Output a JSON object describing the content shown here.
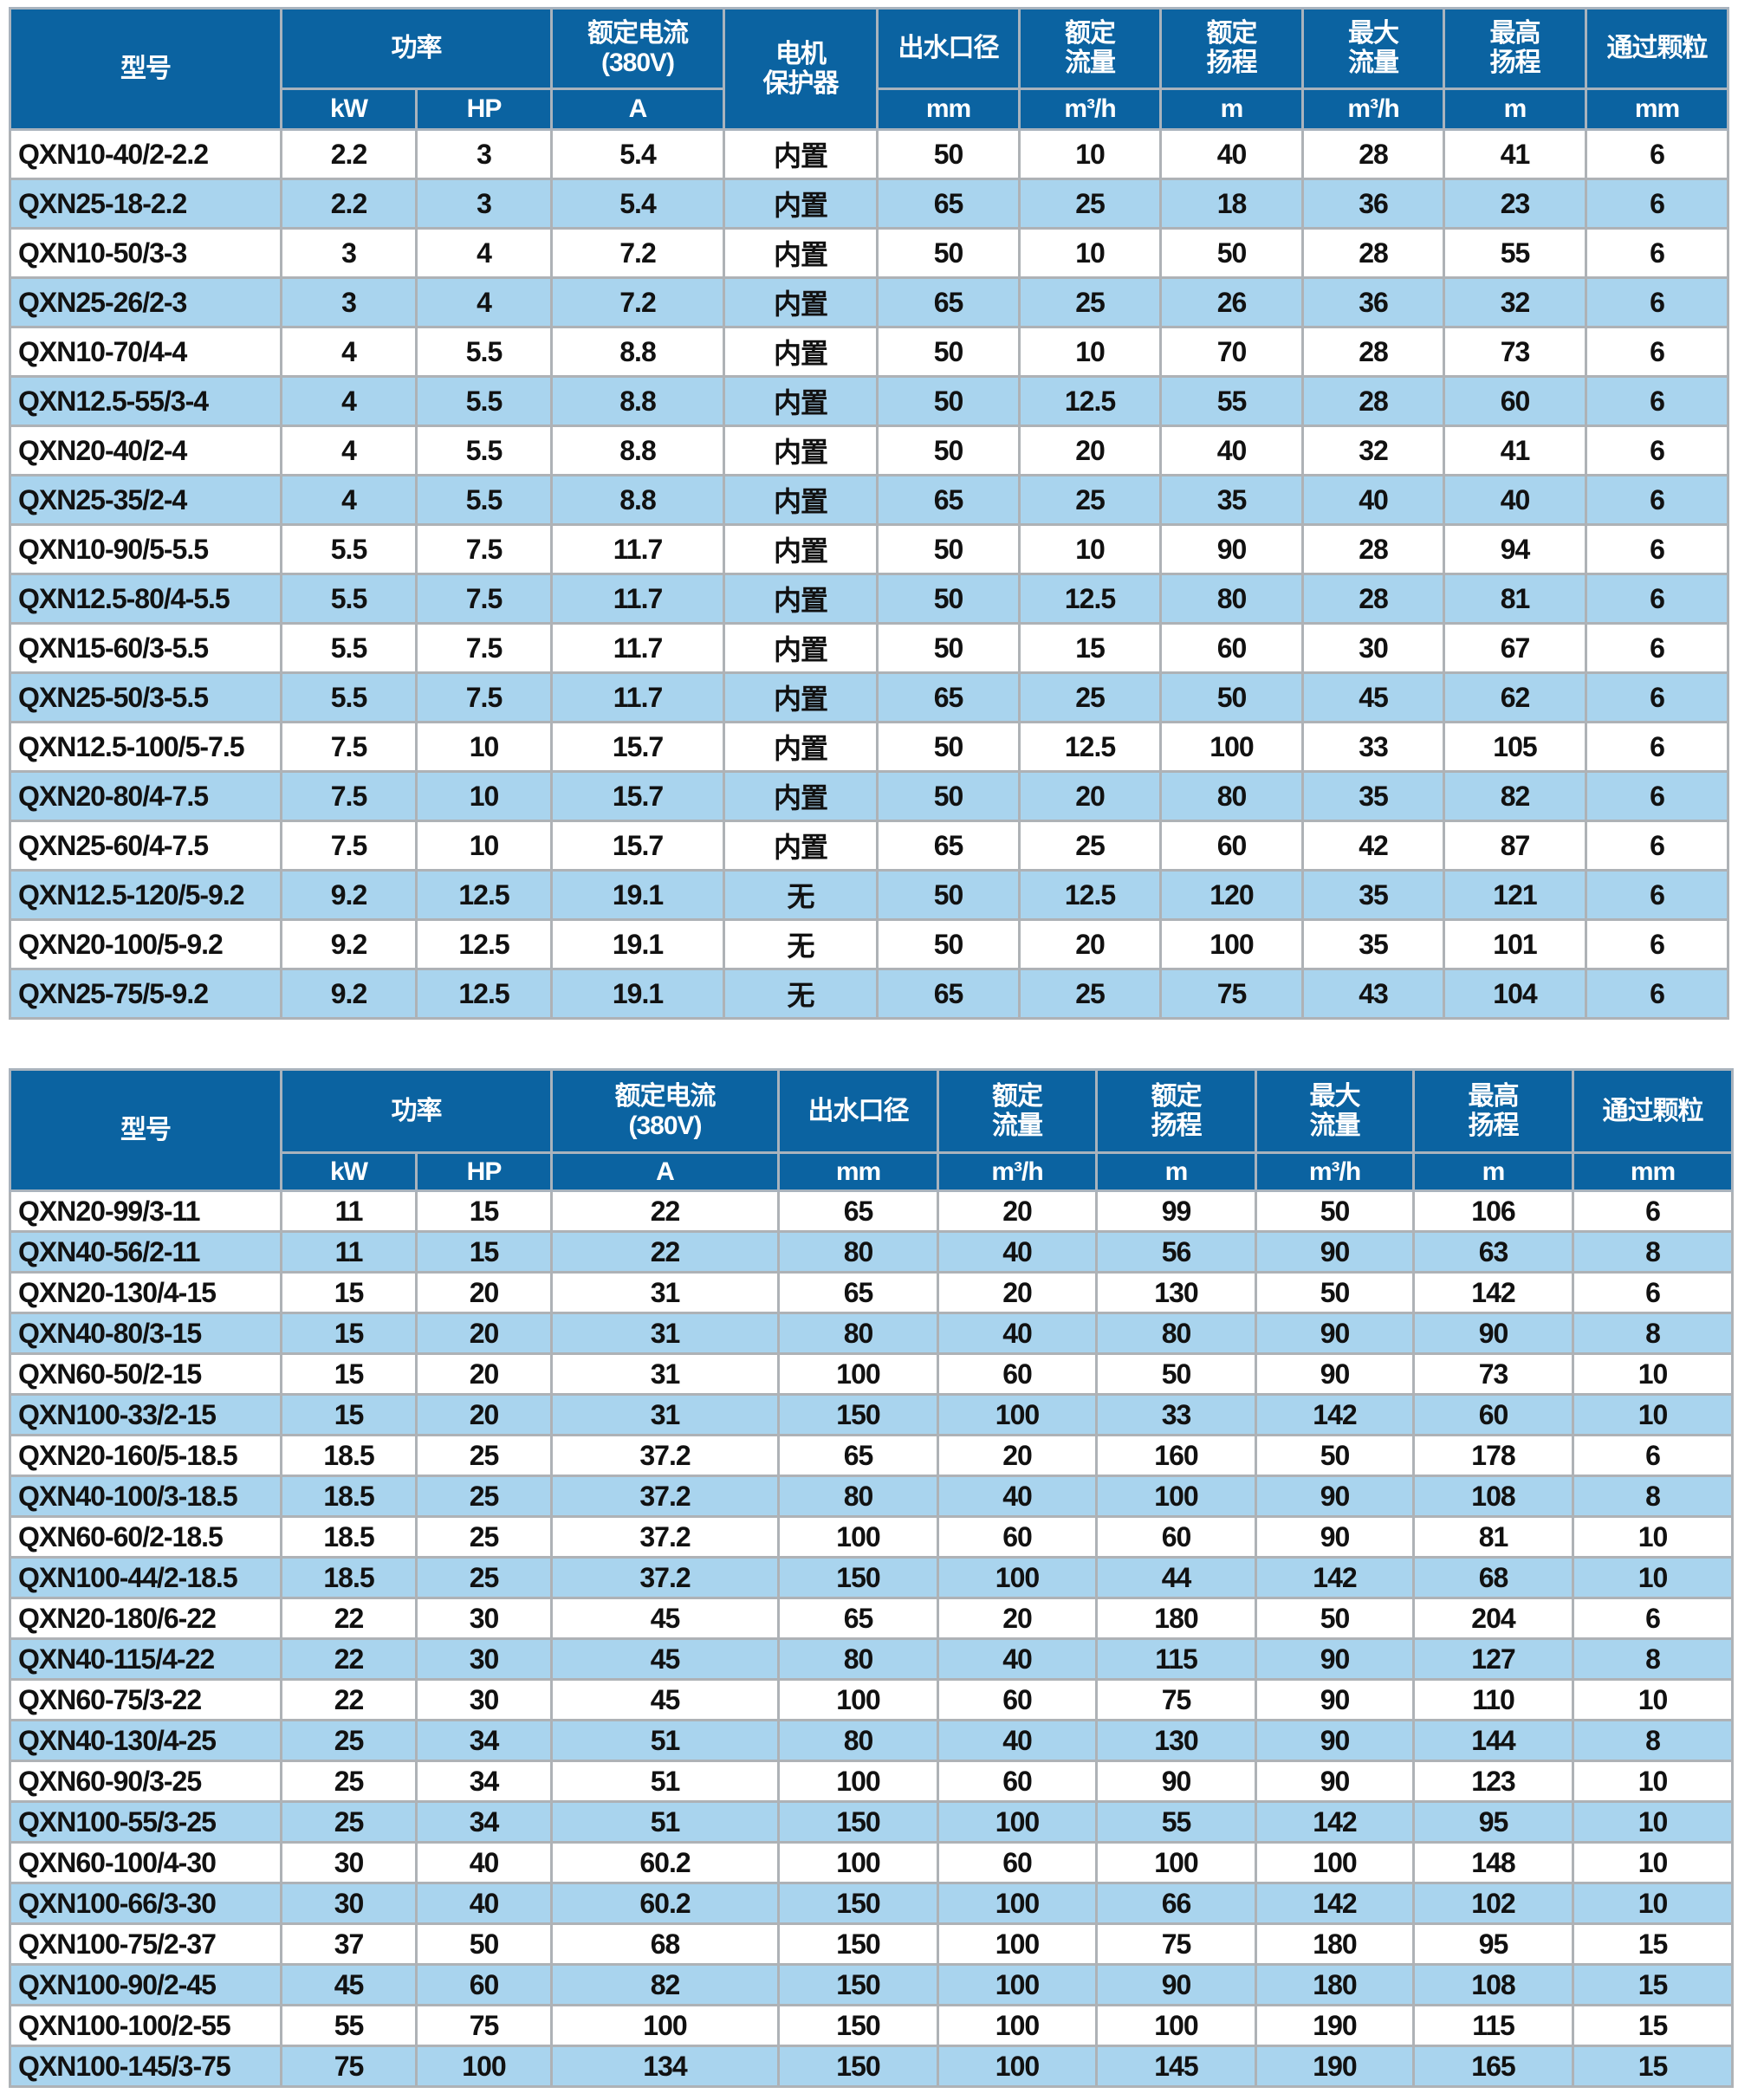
{
  "colors": {
    "header_bg": "#0b63a1",
    "alt_row_bg": "#a9d4ee",
    "border": "#aeb2b6"
  },
  "table1": {
    "headers": {
      "model": "型号",
      "power": "功率",
      "current": "额定电流\n(380V)",
      "protector": "电机\n保护器",
      "outlet": "出水口径",
      "rated_flow": "额定\n流量",
      "rated_head": "额定\n扬程",
      "max_flow": "最大\n流量",
      "max_head": "最高\n扬程",
      "particle": "通过颗粒"
    },
    "units": {
      "kw": "kW",
      "hp": "HP",
      "current": "A",
      "outlet": "mm",
      "rated_flow": "m³/h",
      "rated_head": "m",
      "max_flow": "m³/h",
      "max_head": "m",
      "particle": "mm"
    },
    "rows": [
      [
        "QXN10-40/2-2.2",
        "2.2",
        "3",
        "5.4",
        "内置",
        "50",
        "10",
        "40",
        "28",
        "41",
        "6"
      ],
      [
        "QXN25-18-2.2",
        "2.2",
        "3",
        "5.4",
        "内置",
        "65",
        "25",
        "18",
        "36",
        "23",
        "6"
      ],
      [
        "QXN10-50/3-3",
        "3",
        "4",
        "7.2",
        "内置",
        "50",
        "10",
        "50",
        "28",
        "55",
        "6"
      ],
      [
        "QXN25-26/2-3",
        "3",
        "4",
        "7.2",
        "内置",
        "65",
        "25",
        "26",
        "36",
        "32",
        "6"
      ],
      [
        "QXN10-70/4-4",
        "4",
        "5.5",
        "8.8",
        "内置",
        "50",
        "10",
        "70",
        "28",
        "73",
        "6"
      ],
      [
        "QXN12.5-55/3-4",
        "4",
        "5.5",
        "8.8",
        "内置",
        "50",
        "12.5",
        "55",
        "28",
        "60",
        "6"
      ],
      [
        "QXN20-40/2-4",
        "4",
        "5.5",
        "8.8",
        "内置",
        "50",
        "20",
        "40",
        "32",
        "41",
        "6"
      ],
      [
        "QXN25-35/2-4",
        "4",
        "5.5",
        "8.8",
        "内置",
        "65",
        "25",
        "35",
        "40",
        "40",
        "6"
      ],
      [
        "QXN10-90/5-5.5",
        "5.5",
        "7.5",
        "11.7",
        "内置",
        "50",
        "10",
        "90",
        "28",
        "94",
        "6"
      ],
      [
        "QXN12.5-80/4-5.5",
        "5.5",
        "7.5",
        "11.7",
        "内置",
        "50",
        "12.5",
        "80",
        "28",
        "81",
        "6"
      ],
      [
        "QXN15-60/3-5.5",
        "5.5",
        "7.5",
        "11.7",
        "内置",
        "50",
        "15",
        "60",
        "30",
        "67",
        "6"
      ],
      [
        "QXN25-50/3-5.5",
        "5.5",
        "7.5",
        "11.7",
        "内置",
        "65",
        "25",
        "50",
        "45",
        "62",
        "6"
      ],
      [
        "QXN12.5-100/5-7.5",
        "7.5",
        "10",
        "15.7",
        "内置",
        "50",
        "12.5",
        "100",
        "33",
        "105",
        "6"
      ],
      [
        "QXN20-80/4-7.5",
        "7.5",
        "10",
        "15.7",
        "内置",
        "50",
        "20",
        "80",
        "35",
        "82",
        "6"
      ],
      [
        "QXN25-60/4-7.5",
        "7.5",
        "10",
        "15.7",
        "内置",
        "65",
        "25",
        "60",
        "42",
        "87",
        "6"
      ],
      [
        "QXN12.5-120/5-9.2",
        "9.2",
        "12.5",
        "19.1",
        "无",
        "50",
        "12.5",
        "120",
        "35",
        "121",
        "6"
      ],
      [
        "QXN20-100/5-9.2",
        "9.2",
        "12.5",
        "19.1",
        "无",
        "50",
        "20",
        "100",
        "35",
        "101",
        "6"
      ],
      [
        "QXN25-75/5-9.2",
        "9.2",
        "12.5",
        "19.1",
        "无",
        "65",
        "25",
        "75",
        "43",
        "104",
        "6"
      ]
    ]
  },
  "table2": {
    "headers": {
      "model": "型号",
      "power": "功率",
      "current": "额定电流\n(380V)",
      "outlet": "出水口径",
      "rated_flow": "额定\n流量",
      "rated_head": "额定\n扬程",
      "max_flow": "最大\n流量",
      "max_head": "最高\n扬程",
      "particle": "通过颗粒"
    },
    "units": {
      "kw": "kW",
      "hp": "HP",
      "current": "A",
      "outlet": "mm",
      "rated_flow": "m³/h",
      "rated_head": "m",
      "max_flow": "m³/h",
      "max_head": "m",
      "particle": "mm"
    },
    "rows": [
      [
        "QXN20-99/3-11",
        "11",
        "15",
        "22",
        "65",
        "20",
        "99",
        "50",
        "106",
        "6"
      ],
      [
        "QXN40-56/2-11",
        "11",
        "15",
        "22",
        "80",
        "40",
        "56",
        "90",
        "63",
        "8"
      ],
      [
        "QXN20-130/4-15",
        "15",
        "20",
        "31",
        "65",
        "20",
        "130",
        "50",
        "142",
        "6"
      ],
      [
        "QXN40-80/3-15",
        "15",
        "20",
        "31",
        "80",
        "40",
        "80",
        "90",
        "90",
        "8"
      ],
      [
        "QXN60-50/2-15",
        "15",
        "20",
        "31",
        "100",
        "60",
        "50",
        "90",
        "73",
        "10"
      ],
      [
        "QXN100-33/2-15",
        "15",
        "20",
        "31",
        "150",
        "100",
        "33",
        "142",
        "60",
        "10"
      ],
      [
        "QXN20-160/5-18.5",
        "18.5",
        "25",
        "37.2",
        "65",
        "20",
        "160",
        "50",
        "178",
        "6"
      ],
      [
        "QXN40-100/3-18.5",
        "18.5",
        "25",
        "37.2",
        "80",
        "40",
        "100",
        "90",
        "108",
        "8"
      ],
      [
        "QXN60-60/2-18.5",
        "18.5",
        "25",
        "37.2",
        "100",
        "60",
        "60",
        "90",
        "81",
        "10"
      ],
      [
        "QXN100-44/2-18.5",
        "18.5",
        "25",
        "37.2",
        "150",
        "100",
        "44",
        "142",
        "68",
        "10"
      ],
      [
        "QXN20-180/6-22",
        "22",
        "30",
        "45",
        "65",
        "20",
        "180",
        "50",
        "204",
        "6"
      ],
      [
        "QXN40-115/4-22",
        "22",
        "30",
        "45",
        "80",
        "40",
        "115",
        "90",
        "127",
        "8"
      ],
      [
        "QXN60-75/3-22",
        "22",
        "30",
        "45",
        "100",
        "60",
        "75",
        "90",
        "110",
        "10"
      ],
      [
        "QXN40-130/4-25",
        "25",
        "34",
        "51",
        "80",
        "40",
        "130",
        "90",
        "144",
        "8"
      ],
      [
        "QXN60-90/3-25",
        "25",
        "34",
        "51",
        "100",
        "60",
        "90",
        "90",
        "123",
        "10"
      ],
      [
        "QXN100-55/3-25",
        "25",
        "34",
        "51",
        "150",
        "100",
        "55",
        "142",
        "95",
        "10"
      ],
      [
        "QXN60-100/4-30",
        "30",
        "40",
        "60.2",
        "100",
        "60",
        "100",
        "100",
        "148",
        "10"
      ],
      [
        "QXN100-66/3-30",
        "30",
        "40",
        "60.2",
        "150",
        "100",
        "66",
        "142",
        "102",
        "10"
      ],
      [
        "QXN100-75/2-37",
        "37",
        "50",
        "68",
        "150",
        "100",
        "75",
        "180",
        "95",
        "15"
      ],
      [
        "QXN100-90/2-45",
        "45",
        "60",
        "82",
        "150",
        "100",
        "90",
        "180",
        "108",
        "15"
      ],
      [
        "QXN100-100/2-55",
        "55",
        "75",
        "100",
        "150",
        "100",
        "100",
        "190",
        "115",
        "15"
      ],
      [
        "QXN100-145/3-75",
        "75",
        "100",
        "134",
        "150",
        "100",
        "145",
        "190",
        "165",
        "15"
      ]
    ]
  }
}
